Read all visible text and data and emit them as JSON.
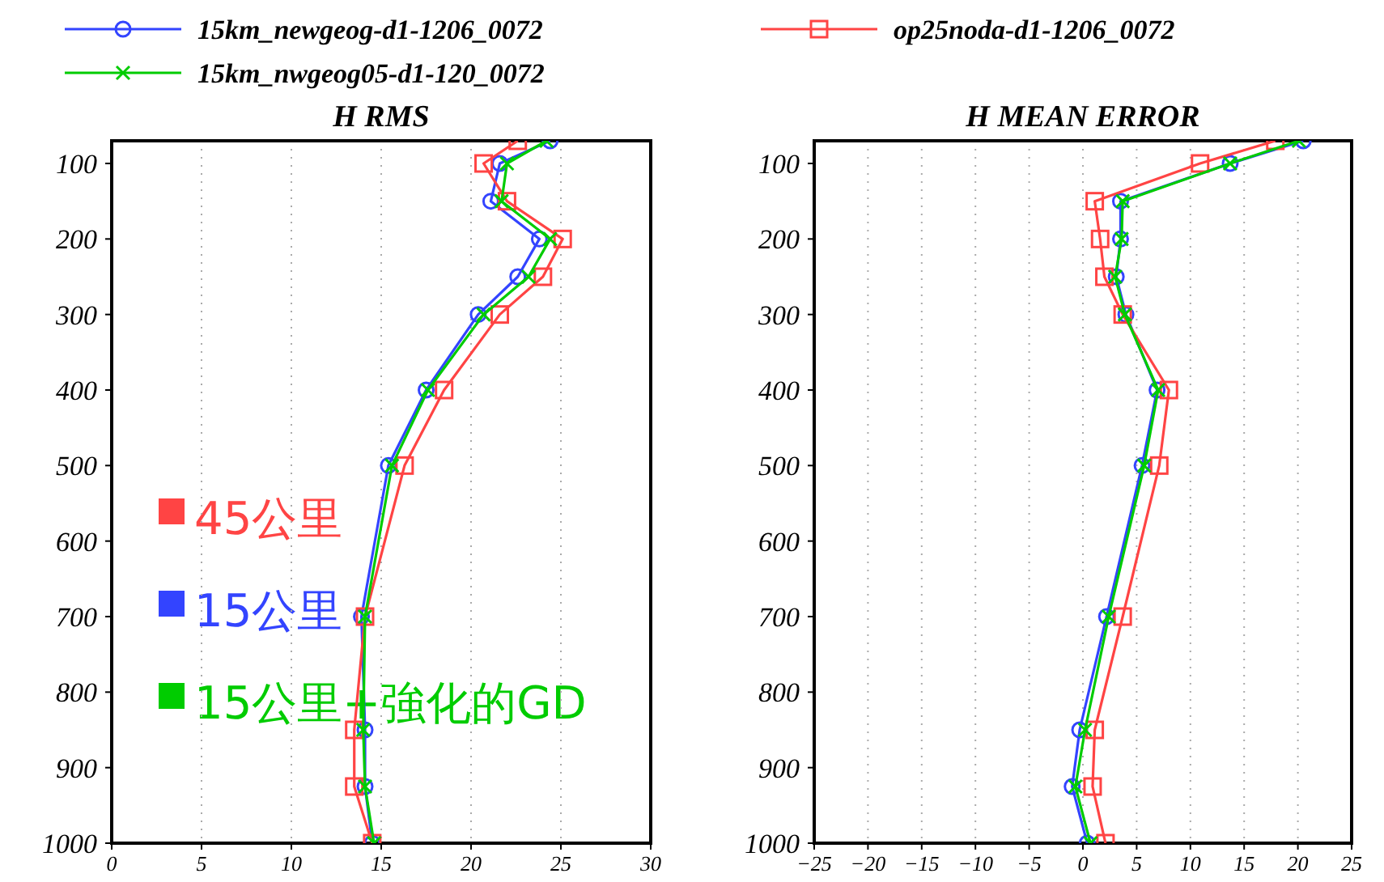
{
  "chart_data": [
    {
      "type": "line",
      "title": "H RMS",
      "xlim": [
        0,
        30
      ],
      "xticks": [
        0,
        5,
        10,
        15,
        20,
        25,
        30
      ],
      "ylim": [
        1000,
        70
      ],
      "yticks": [
        100,
        200,
        300,
        400,
        500,
        600,
        700,
        800,
        900,
        1000
      ],
      "grid": "x",
      "legend": "top",
      "line_style": "solid",
      "annotations": [
        "45公里",
        "15公里",
        "15公里+強化的GD"
      ],
      "series": [
        {
          "name": "15km_newgeog-d1-1206_0072",
          "color": "#3344ff",
          "marker": "circle",
          "x": [
            24.4,
            21.6,
            21.1,
            23.8,
            22.6,
            20.4,
            17.5,
            15.4,
            13.9,
            14.1,
            14.1,
            14.5
          ],
          "values": [
            70,
            100,
            150,
            200,
            250,
            300,
            400,
            500,
            700,
            850,
            925,
            1000
          ]
        },
        {
          "name": "op25noda-d1-1206_0072",
          "color": "#ff4444",
          "marker": "square",
          "x": [
            22.6,
            20.7,
            22.0,
            25.1,
            24.0,
            21.6,
            18.5,
            16.3,
            14.1,
            13.5,
            13.5,
            14.5
          ],
          "values": [
            70,
            100,
            150,
            200,
            250,
            300,
            400,
            500,
            700,
            850,
            925,
            1000
          ]
        },
        {
          "name": "15km_nwgeog05-d1-120_0072",
          "color": "#00cc00",
          "marker": "cross",
          "x": [
            24.2,
            22.0,
            21.7,
            24.4,
            23.2,
            20.7,
            17.6,
            15.6,
            14.1,
            14.0,
            14.1,
            14.6
          ],
          "values": [
            70,
            100,
            150,
            200,
            250,
            300,
            400,
            500,
            700,
            850,
            925,
            1000
          ]
        }
      ]
    },
    {
      "type": "line",
      "title": "H MEAN ERROR",
      "xlim": [
        -25,
        25
      ],
      "xticks": [
        -25,
        -20,
        -15,
        -10,
        -5,
        0,
        5,
        10,
        15,
        20,
        25
      ],
      "ylim": [
        1000,
        70
      ],
      "yticks": [
        100,
        200,
        300,
        400,
        500,
        600,
        700,
        800,
        900,
        1000
      ],
      "grid": "x",
      "line_style": "solid",
      "series": [
        {
          "color": "#3344ff",
          "marker": "circle",
          "x": [
            20.5,
            13.7,
            3.5,
            3.5,
            3.1,
            4.0,
            6.9,
            5.5,
            2.2,
            -0.3,
            -1.0,
            0.4
          ],
          "values": [
            70,
            100,
            150,
            200,
            250,
            300,
            400,
            500,
            700,
            850,
            925,
            1000
          ]
        },
        {
          "color": "#ff4444",
          "marker": "square",
          "x": [
            17.9,
            10.9,
            1.1,
            1.6,
            2.0,
            3.7,
            8.0,
            7.1,
            3.7,
            1.1,
            0.9,
            2.1
          ],
          "values": [
            70,
            100,
            150,
            200,
            250,
            300,
            400,
            500,
            700,
            850,
            925,
            1000
          ]
        },
        {
          "color": "#00cc00",
          "marker": "cross",
          "x": [
            20.1,
            13.7,
            3.7,
            3.6,
            3.0,
            3.9,
            7.0,
            5.7,
            2.4,
            0.2,
            -0.7,
            0.7
          ],
          "values": [
            70,
            100,
            150,
            200,
            250,
            300,
            400,
            500,
            700,
            850,
            925,
            1000
          ]
        }
      ]
    }
  ]
}
